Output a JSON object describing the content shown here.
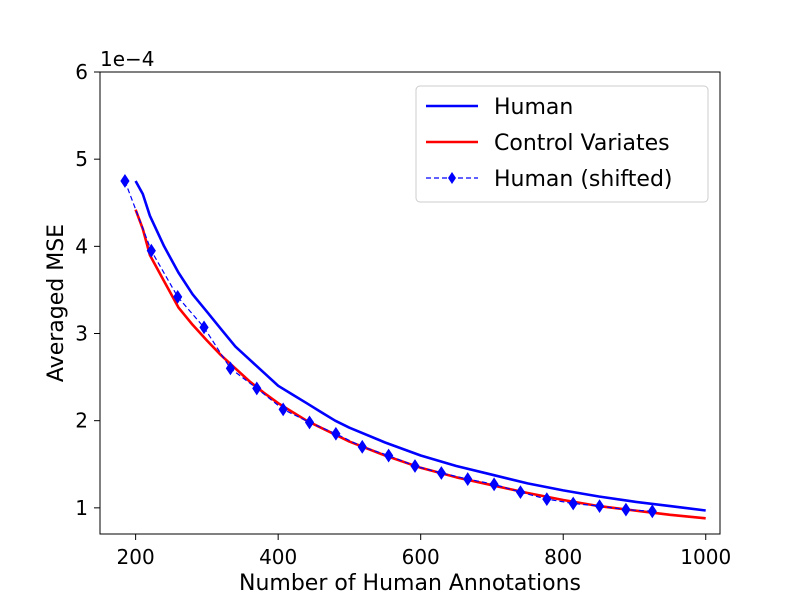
{
  "chart_data": {
    "type": "line",
    "title": "",
    "xlabel": "Number of Human Annotations",
    "ylabel": "Averaged MSE",
    "y_offset_text": "1e−4",
    "xlim": [
      150,
      1020
    ],
    "ylim": [
      0.7,
      6
    ],
    "x_ticks": [
      200,
      400,
      600,
      800,
      1000
    ],
    "x_tick_labels": [
      "200",
      "400",
      "600",
      "800",
      "1000"
    ],
    "y_ticks": [
      1,
      2,
      3,
      4,
      5,
      6
    ],
    "y_tick_labels": [
      "1",
      "2",
      "3",
      "4",
      "5",
      "6"
    ],
    "grid": false,
    "legend_position": "top-right",
    "series": [
      {
        "name": "Human",
        "color": "#0000ff",
        "style": "solid",
        "x": [
          200,
          210,
          220,
          240,
          260,
          280,
          300,
          320,
          340,
          360,
          380,
          400,
          420,
          440,
          460,
          480,
          500,
          550,
          600,
          650,
          700,
          750,
          800,
          850,
          900,
          950,
          1000
        ],
        "y": [
          4.75,
          4.6,
          4.35,
          4.0,
          3.7,
          3.45,
          3.25,
          3.05,
          2.85,
          2.7,
          2.55,
          2.4,
          2.3,
          2.2,
          2.1,
          2.0,
          1.92,
          1.75,
          1.6,
          1.48,
          1.38,
          1.28,
          1.2,
          1.13,
          1.07,
          1.02,
          0.97
        ]
      },
      {
        "name": "Control Variates",
        "color": "#ff0000",
        "style": "solid",
        "x": [
          200,
          210,
          220,
          240,
          260,
          280,
          300,
          320,
          340,
          360,
          380,
          400,
          420,
          440,
          460,
          480,
          500,
          550,
          600,
          650,
          700,
          750,
          800,
          850,
          900,
          950,
          1000
        ],
        "y": [
          4.42,
          4.2,
          3.9,
          3.6,
          3.3,
          3.1,
          2.92,
          2.75,
          2.6,
          2.45,
          2.32,
          2.2,
          2.1,
          2.0,
          1.92,
          1.84,
          1.76,
          1.6,
          1.46,
          1.35,
          1.26,
          1.17,
          1.09,
          1.02,
          0.97,
          0.92,
          0.88
        ]
      },
      {
        "name": "Human (shifted)",
        "color": "#0000ff",
        "style": "dashed",
        "marker": "diamond",
        "x": [
          185,
          222,
          259,
          296,
          333,
          370,
          407,
          444,
          481,
          518,
          555,
          592,
          629,
          666,
          703,
          740,
          777,
          814,
          851,
          888,
          925
        ],
        "y": [
          4.75,
          3.95,
          3.42,
          3.07,
          2.6,
          2.37,
          2.13,
          1.98,
          1.85,
          1.7,
          1.6,
          1.48,
          1.4,
          1.33,
          1.27,
          1.18,
          1.1,
          1.05,
          1.02,
          0.98,
          0.96
        ]
      }
    ]
  }
}
